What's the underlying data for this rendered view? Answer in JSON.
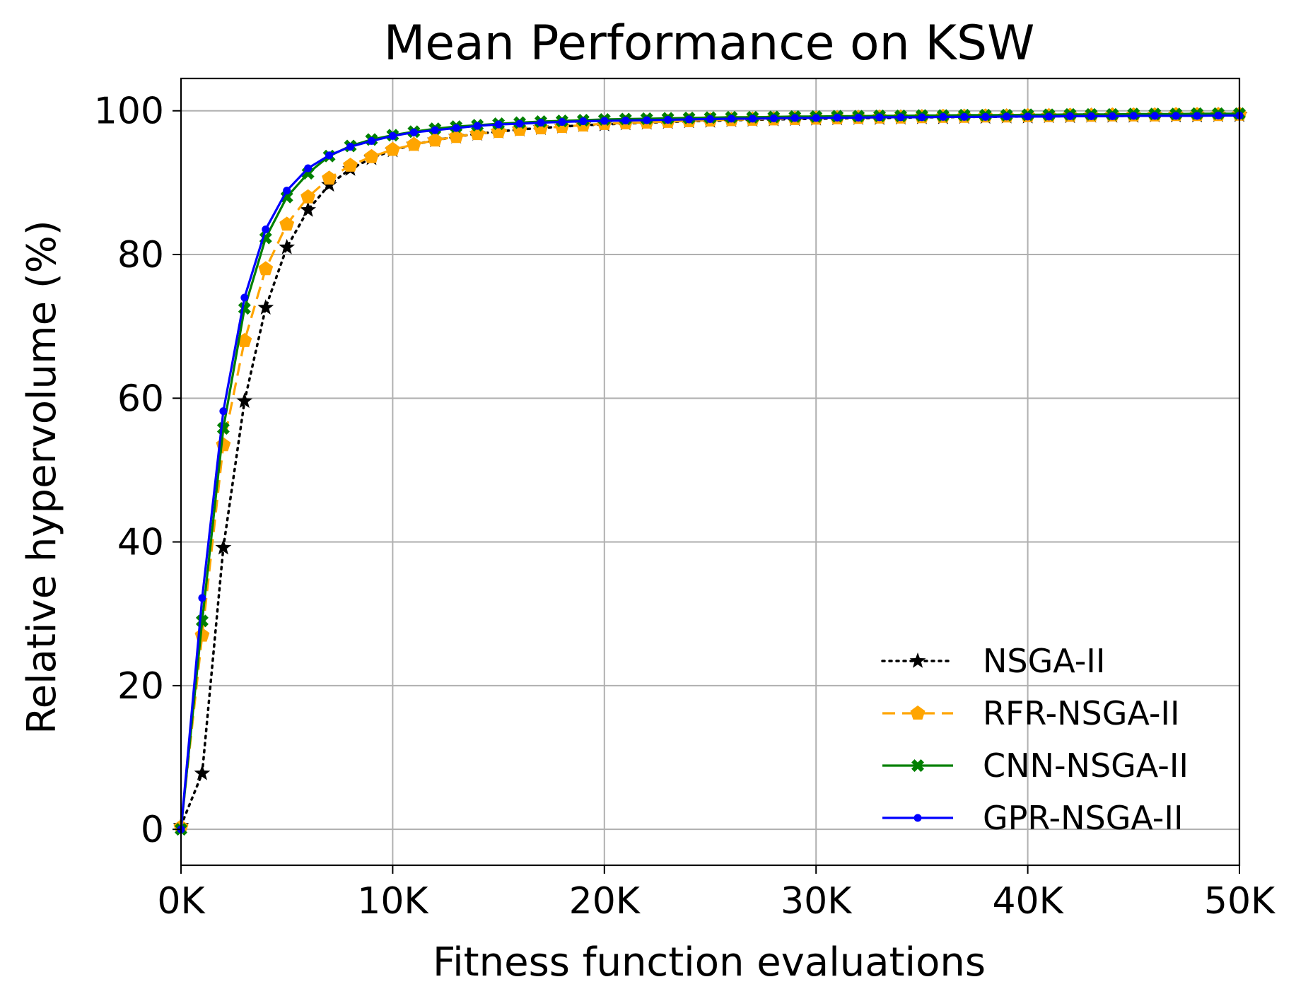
{
  "chart_data": {
    "type": "line",
    "title": "Mean Performance on KSW",
    "xlabel": "Fitness function evaluations",
    "ylabel": "Relative hypervolume (%)",
    "xlim": [
      0,
      50000
    ],
    "ylim": [
      -5,
      104.5
    ],
    "x_ticks": [
      0,
      10000,
      20000,
      30000,
      40000,
      50000
    ],
    "x_tick_labels": [
      "0K",
      "10K",
      "20K",
      "30K",
      "40K",
      "50K"
    ],
    "y_ticks": [
      0,
      20,
      40,
      60,
      80,
      100
    ],
    "y_tick_labels": [
      "0",
      "20",
      "40",
      "60",
      "80",
      "100"
    ],
    "grid": true,
    "legend_position": "lower-right",
    "x": [
      0,
      1000,
      2000,
      3000,
      4000,
      5000,
      6000,
      7000,
      8000,
      9000,
      10000,
      11000,
      12000,
      13000,
      14000,
      15000,
      16000,
      17000,
      18000,
      19000,
      20000,
      21000,
      22000,
      23000,
      24000,
      25000,
      26000,
      27000,
      28000,
      29000,
      30000,
      31000,
      32000,
      33000,
      34000,
      35000,
      36000,
      37000,
      38000,
      39000,
      40000,
      41000,
      42000,
      43000,
      44000,
      45000,
      46000,
      47000,
      48000,
      49000,
      50000
    ],
    "series": [
      {
        "name": "NSGA-II",
        "color": "#000000",
        "line_style": "dotted",
        "marker": "star",
        "values": [
          0.5,
          7.8,
          39.2,
          59.6,
          72.6,
          81.0,
          86.2,
          89.7,
          91.9,
          93.4,
          94.5,
          95.3,
          95.9,
          96.4,
          96.8,
          97.1,
          97.4,
          97.6,
          97.8,
          98.0,
          98.1,
          98.25,
          98.35,
          98.45,
          98.55,
          98.6,
          98.7,
          98.75,
          98.8,
          98.85,
          98.9,
          98.95,
          99.0,
          99.0,
          99.05,
          99.1,
          99.1,
          99.15,
          99.15,
          99.2,
          99.2,
          99.25,
          99.25,
          99.3,
          99.3,
          99.3,
          99.35,
          99.35,
          99.35,
          99.4,
          99.4
        ]
      },
      {
        "name": "RFR-NSGA-II",
        "color": "#ffa500",
        "line_style": "dashed",
        "marker": "pentagon",
        "values": [
          0.3,
          27.0,
          53.5,
          68.0,
          78.0,
          84.2,
          88.0,
          90.6,
          92.4,
          93.6,
          94.6,
          95.3,
          95.9,
          96.4,
          96.8,
          97.1,
          97.4,
          97.6,
          97.8,
          98.0,
          98.2,
          98.3,
          98.4,
          98.5,
          98.6,
          98.7,
          98.75,
          98.8,
          98.85,
          98.9,
          98.95,
          99.0,
          99.05,
          99.1,
          99.1,
          99.15,
          99.2,
          99.2,
          99.25,
          99.25,
          99.3,
          99.3,
          99.35,
          99.35,
          99.4,
          99.4,
          99.4,
          99.45,
          99.45,
          99.45,
          99.5
        ]
      },
      {
        "name": "CNN-NSGA-II",
        "color": "#008000",
        "line_style": "solid",
        "marker": "x-filled",
        "values": [
          0.0,
          29.0,
          55.8,
          72.5,
          82.3,
          88.0,
          91.3,
          93.7,
          95.1,
          96.0,
          96.6,
          97.1,
          97.5,
          97.8,
          98.0,
          98.2,
          98.35,
          98.5,
          98.6,
          98.7,
          98.8,
          98.85,
          98.9,
          98.95,
          99.0,
          99.05,
          99.1,
          99.1,
          99.15,
          99.2,
          99.2,
          99.25,
          99.25,
          99.3,
          99.3,
          99.35,
          99.35,
          99.4,
          99.4,
          99.4,
          99.45,
          99.45,
          99.5,
          99.5,
          99.5,
          99.55,
          99.55,
          99.55,
          99.6,
          99.6,
          99.6
        ]
      },
      {
        "name": "GPR-NSGA-II",
        "color": "#0000ff",
        "line_style": "solid",
        "marker": "dot",
        "values": [
          0.0,
          32.2,
          58.2,
          74.0,
          83.5,
          88.9,
          92.0,
          93.8,
          95.0,
          95.8,
          96.5,
          97.0,
          97.3,
          97.6,
          97.9,
          98.1,
          98.2,
          98.35,
          98.45,
          98.55,
          98.6,
          98.65,
          98.7,
          98.75,
          98.8,
          98.85,
          98.9,
          98.9,
          98.95,
          99.0,
          99.0,
          99.05,
          99.05,
          99.1,
          99.1,
          99.1,
          99.15,
          99.15,
          99.15,
          99.2,
          99.2,
          99.2,
          99.25,
          99.25,
          99.25,
          99.3,
          99.3,
          99.3,
          99.3,
          99.35,
          99.35
        ]
      }
    ]
  }
}
